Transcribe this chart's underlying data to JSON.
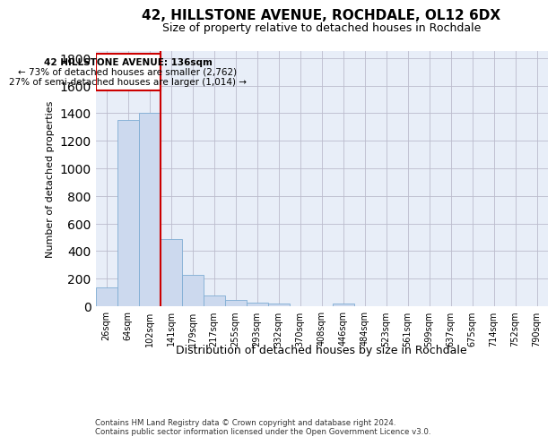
{
  "title_line1": "42, HILLSTONE AVENUE, ROCHDALE, OL12 6DX",
  "title_line2": "Size of property relative to detached houses in Rochdale",
  "xlabel": "Distribution of detached houses by size in Rochdale",
  "ylabel": "Number of detached properties",
  "bin_labels": [
    "26sqm",
    "64sqm",
    "102sqm",
    "141sqm",
    "179sqm",
    "217sqm",
    "255sqm",
    "293sqm",
    "332sqm",
    "370sqm",
    "408sqm",
    "446sqm",
    "484sqm",
    "523sqm",
    "561sqm",
    "599sqm",
    "637sqm",
    "675sqm",
    "714sqm",
    "752sqm",
    "790sqm"
  ],
  "bar_values": [
    135,
    1350,
    1405,
    490,
    225,
    80,
    45,
    28,
    20,
    0,
    0,
    20,
    0,
    0,
    0,
    0,
    0,
    0,
    0,
    0,
    0
  ],
  "bar_color": "#ccd9ee",
  "bar_edge_color": "#7fadd4",
  "grid_color": "#cccccc",
  "vline_color": "#cc0000",
  "annotation_text_line1": "42 HILLSTONE AVENUE: 136sqm",
  "annotation_text_line2": "← 73% of detached houses are smaller (2,762)",
  "annotation_text_line3": "27% of semi-detached houses are larger (1,014) →",
  "annotation_box_color": "#cc0000",
  "ylim": [
    0,
    1850
  ],
  "yticks": [
    0,
    200,
    400,
    600,
    800,
    1000,
    1200,
    1400,
    1600,
    1800
  ],
  "footer_text": "Contains HM Land Registry data © Crown copyright and database right 2024.\nContains public sector information licensed under the Open Government Licence v3.0.",
  "background_color": "#e8eef8"
}
